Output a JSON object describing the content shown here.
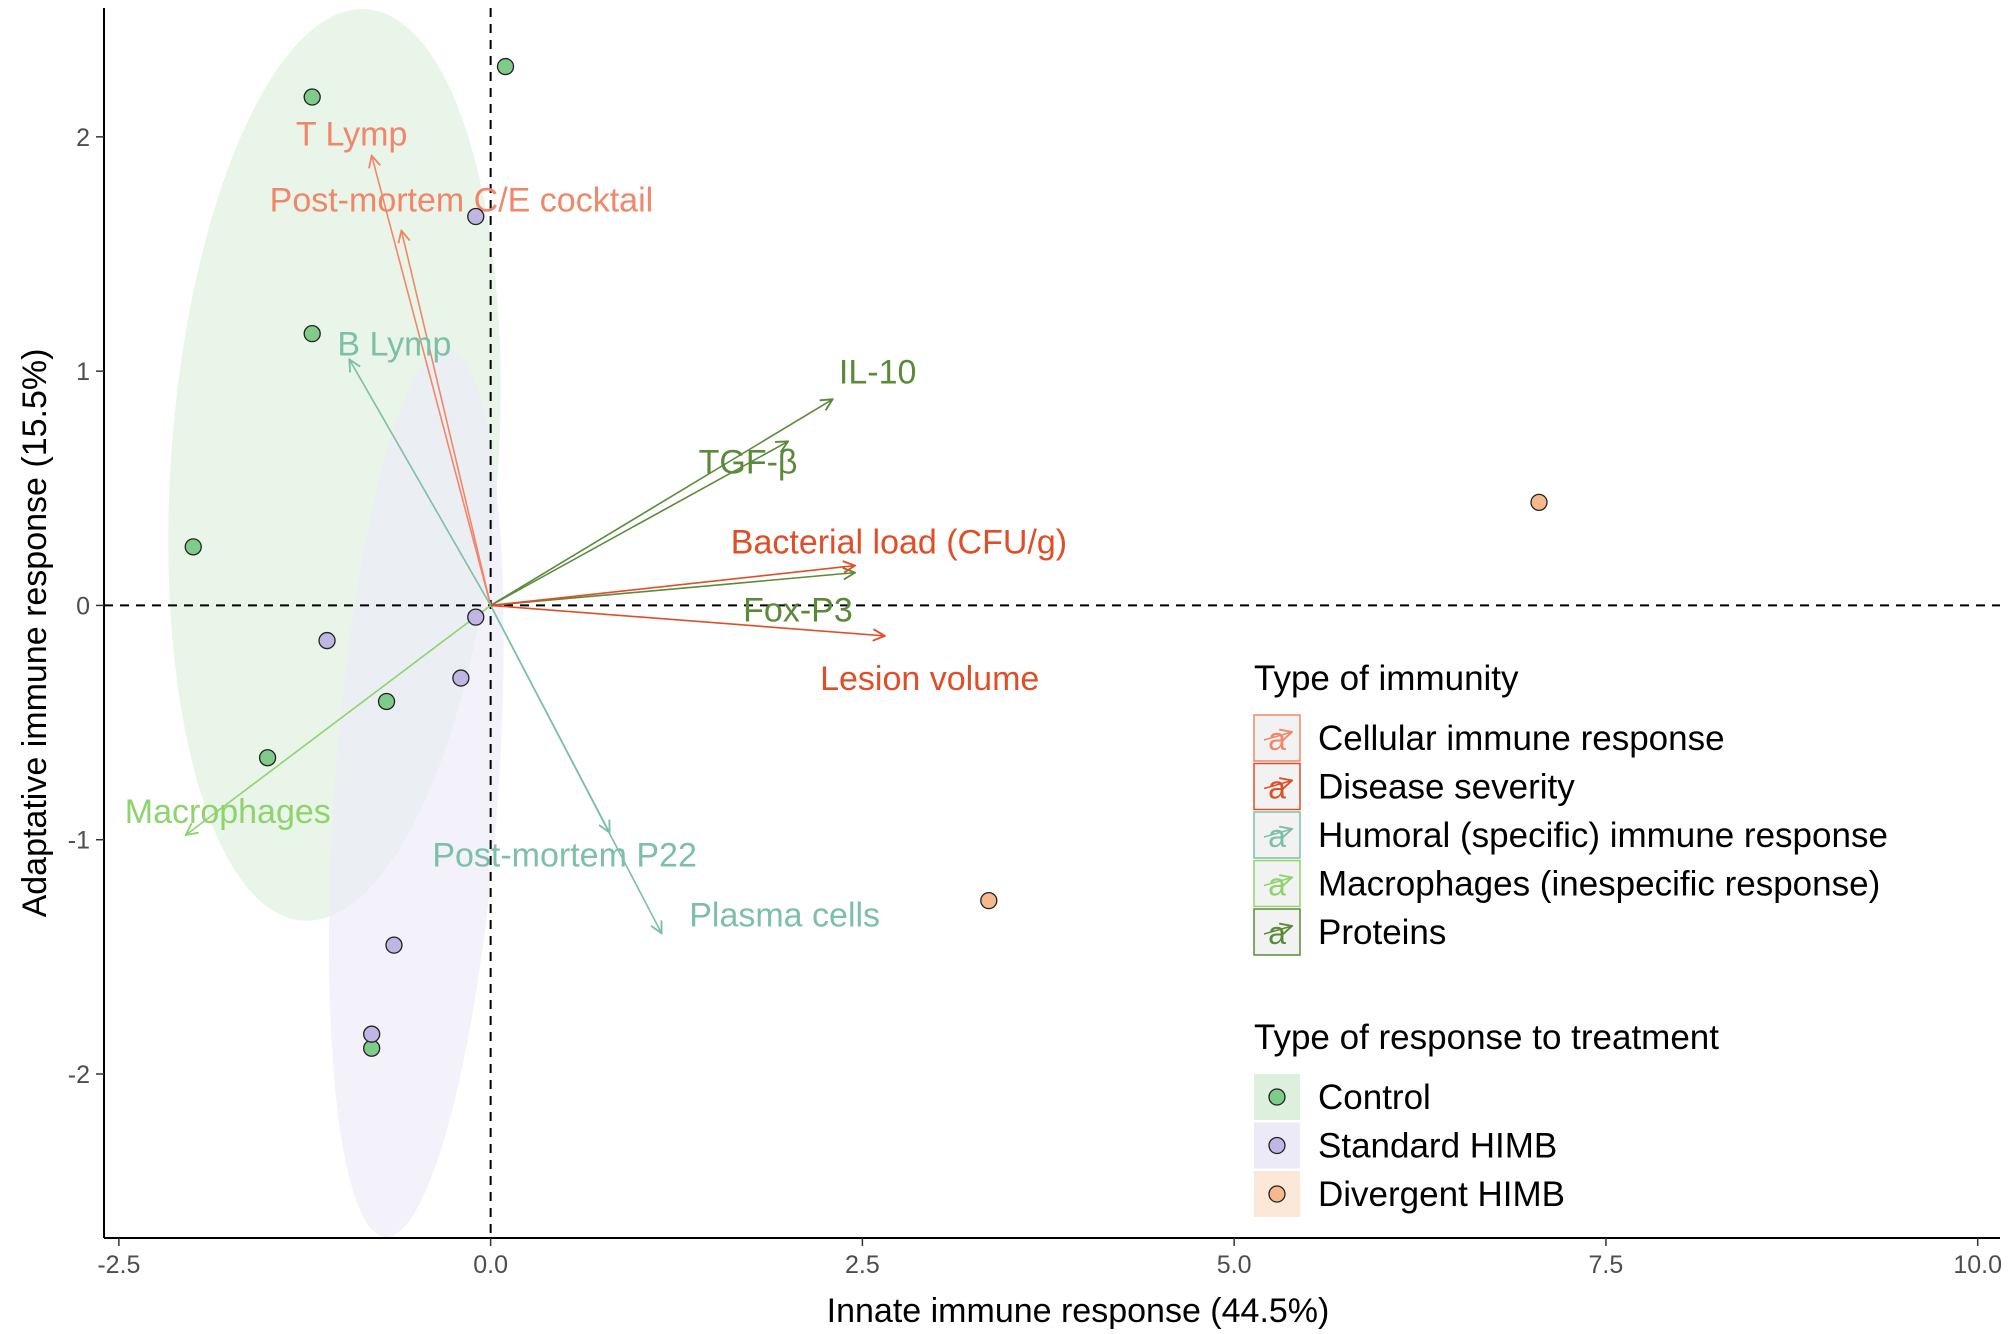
{
  "chart_data": {
    "type": "scatter",
    "subtype": "pca-biplot",
    "xlabel": "Innate immune response (44.5%)",
    "ylabel": "Adaptative immune response (15.5%)",
    "xlim": [
      -2.6,
      10.15
    ],
    "ylim": [
      -2.7,
      2.55
    ],
    "x_ticks": [
      -2.5,
      0.0,
      2.5,
      5.0,
      7.5,
      10.0
    ],
    "x_tick_labels": [
      "-2.5",
      "0.0",
      "2.5",
      "5.0",
      "7.5",
      "10.0"
    ],
    "y_ticks": [
      -2,
      -1,
      0,
      1,
      2
    ],
    "y_tick_labels": [
      "-2",
      "-1",
      "0",
      "1",
      "2"
    ],
    "reference_lines": {
      "x": 0,
      "y": 0,
      "style": "dashed"
    },
    "grid": false,
    "points": [
      {
        "x": 0.1,
        "y": 2.3,
        "group": "Control"
      },
      {
        "x": -1.2,
        "y": 2.17,
        "group": "Control"
      },
      {
        "x": -1.2,
        "y": 1.16,
        "group": "Control"
      },
      {
        "x": -2.0,
        "y": 0.25,
        "group": "Control"
      },
      {
        "x": -0.7,
        "y": -0.41,
        "group": "Control"
      },
      {
        "x": -1.5,
        "y": -0.65,
        "group": "Control"
      },
      {
        "x": -0.8,
        "y": -1.89,
        "group": "Control"
      },
      {
        "x": -0.1,
        "y": 1.66,
        "group": "Standard HIMB"
      },
      {
        "x": -0.1,
        "y": -0.05,
        "group": "Standard HIMB"
      },
      {
        "x": -1.1,
        "y": -0.15,
        "group": "Standard HIMB"
      },
      {
        "x": -0.2,
        "y": -0.31,
        "group": "Standard HIMB"
      },
      {
        "x": -0.65,
        "y": -1.45,
        "group": "Standard HIMB"
      },
      {
        "x": -0.8,
        "y": -1.83,
        "group": "Standard HIMB"
      },
      {
        "x": 7.05,
        "y": 0.44,
        "group": "Divergent HIMB"
      },
      {
        "x": 3.35,
        "y": -1.26,
        "group": "Divergent HIMB"
      }
    ],
    "ellipses": [
      {
        "group": "Control",
        "cx": -1.05,
        "cy": 0.6,
        "rx": 1.1,
        "ry": 1.95,
        "tilt": 4
      },
      {
        "group": "Standard HIMB",
        "cx": -0.5,
        "cy": -0.8,
        "rx": 0.55,
        "ry": 1.9,
        "tilt": 4
      }
    ],
    "arrows": [
      {
        "label": "T Lymp",
        "x": -0.8,
        "y": 1.92,
        "type": "Cellular immune response"
      },
      {
        "label": "Post-mortem C/E cocktail",
        "x": -0.6,
        "y": 1.6,
        "type": "Cellular immune response"
      },
      {
        "label": "B Lymp",
        "x": -0.95,
        "y": 1.05,
        "type": "Humoral (specific) immune response"
      },
      {
        "label": "Post-mortem P22",
        "x": 0.8,
        "y": -0.97,
        "type": "Humoral (specific) immune response"
      },
      {
        "label": "Plasma cells",
        "x": 1.15,
        "y": -1.4,
        "type": "Humoral (specific) immune response"
      },
      {
        "label": "IL-10",
        "x": 2.3,
        "y": 0.88,
        "type": "Proteins"
      },
      {
        "label": "TGF-β",
        "x": 2.0,
        "y": 0.7,
        "type": "Proteins"
      },
      {
        "label": "Fox-P3",
        "x": 2.45,
        "y": 0.14,
        "type": "Proteins"
      },
      {
        "label": "Bacterial load (CFU/g)",
        "x": 2.45,
        "y": 0.17,
        "type": "Disease severity"
      },
      {
        "label": "Lesion volume",
        "x": 2.65,
        "y": -0.13,
        "type": "Disease severity"
      },
      {
        "label": "Macrophages",
        "x": -2.05,
        "y": -0.98,
        "type": "Macrophages (inespecific response)"
      }
    ],
    "arrow_types": [
      {
        "name": "Cellular immune response",
        "color": "#F0876A"
      },
      {
        "name": "Disease severity",
        "color": "#E04E27"
      },
      {
        "name": "Humoral (specific) immune response",
        "color": "#7DBFA7"
      },
      {
        "name": "Macrophages (inespecific response)",
        "color": "#8ED36E"
      },
      {
        "name": "Proteins",
        "color": "#5B8A3A"
      }
    ],
    "groups": [
      {
        "name": "Control",
        "color": "#7FCB8A",
        "ellipse_color": "#DDF0DD"
      },
      {
        "name": "Standard HIMB",
        "color": "#C0B6E3",
        "ellipse_color": "#ECEAF7"
      },
      {
        "name": "Divergent HIMB",
        "color": "#F6B98B",
        "ellipse_color": "#FCE8D8"
      }
    ],
    "legend": {
      "position": "right-bottom",
      "arrow_title": "Type of immunity",
      "point_title": "Type of response to treatment",
      "key_glyph": "a"
    }
  }
}
